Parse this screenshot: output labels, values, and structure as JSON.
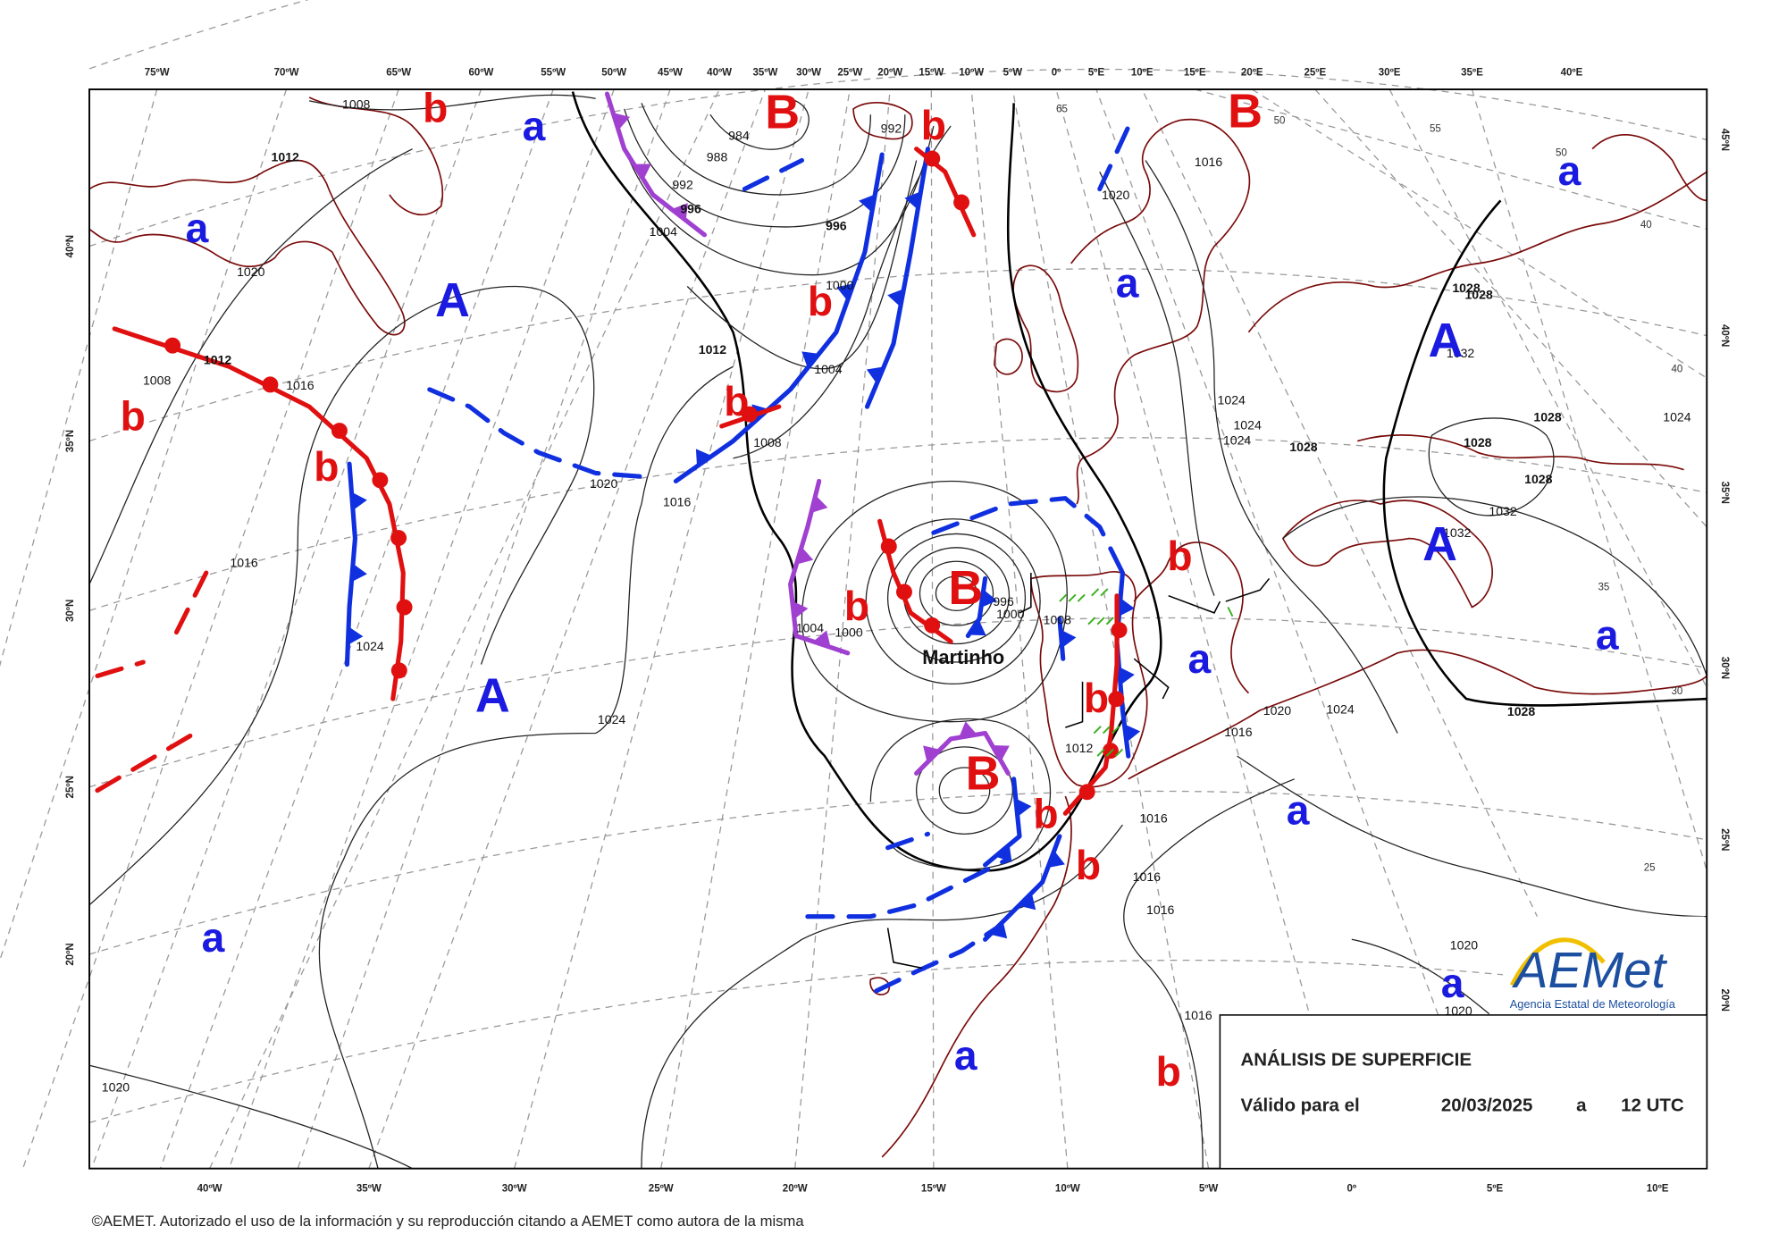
{
  "map": {
    "top_longitudes": [
      "75ºW",
      "70ºW",
      "65ºW",
      "60ºW",
      "55ºW",
      "50ºW",
      "45ºW",
      "40ºW",
      "35ºW",
      "30ºW",
      "25ºW",
      "20ºW",
      "15ºW",
      "10ºW",
      "5ºW",
      "0º",
      "5ºE",
      "10ºE",
      "15ºE",
      "20ºE",
      "25ºE",
      "30ºE",
      "35ºE",
      "40ºE"
    ],
    "bottom_longitudes": [
      "40ºW",
      "35ºW",
      "30ºW",
      "25ºW",
      "20ºW",
      "15ºW",
      "10ºW",
      "5ºW",
      "0º",
      "5ºE",
      "10ºE"
    ],
    "left_latitudes": [
      "40ºN",
      "35ºN",
      "30ºN",
      "25ºN",
      "20ºN"
    ],
    "right_latitudes": [
      "45ºN",
      "40ºN",
      "35ºN",
      "30ºN",
      "25ºN",
      "20ºN"
    ],
    "graticule_labels": [
      "65",
      "55",
      "50",
      "50",
      "40",
      "40",
      "35",
      "30",
      "25"
    ],
    "pressure_centers": [
      "b",
      "a",
      "B",
      "b",
      "B",
      "a",
      "a",
      "A",
      "b",
      "a",
      "A",
      "b",
      "b",
      "b",
      "A",
      "b",
      "b",
      "B",
      "a",
      "a",
      "A",
      "b",
      "B",
      "b",
      "a",
      "b",
      "a",
      "a",
      "a",
      "b"
    ],
    "isobar_labels": [
      "1008",
      "1012",
      "1020",
      "1012",
      "1008",
      "1016",
      "1016",
      "1024",
      "1024",
      "1020",
      "1016",
      "1008",
      "1004",
      "1000",
      "1012",
      "996",
      "996",
      "992",
      "1004",
      "988",
      "984",
      "992",
      "1016",
      "1020",
      "1024",
      "1024",
      "1024",
      "1028",
      "1028",
      "1028",
      "1032",
      "1028",
      "1028",
      "1028",
      "1032",
      "1032",
      "1024",
      "1024",
      "1020",
      "1016",
      "1012",
      "1008",
      "996",
      "1000",
      "1004",
      "1000",
      "1016",
      "1016",
      "1016",
      "1016",
      "1028",
      "1020",
      "1020",
      "1020"
    ],
    "storm_name": "Martinho"
  },
  "legend": {
    "title": "ANÁLISIS DE SUPERFICIE",
    "valid_label": "Válido para el",
    "date": "20/03/2025",
    "connector": "a",
    "time": "12 UTC"
  },
  "logo": {
    "name": "AEMet",
    "agency": "Agencia Estatal de Meteorología"
  },
  "footer": {
    "copyright": "©AEMET. Autorizado el uso de la información y su reproducción citando a AEMET como autora de la misma"
  }
}
